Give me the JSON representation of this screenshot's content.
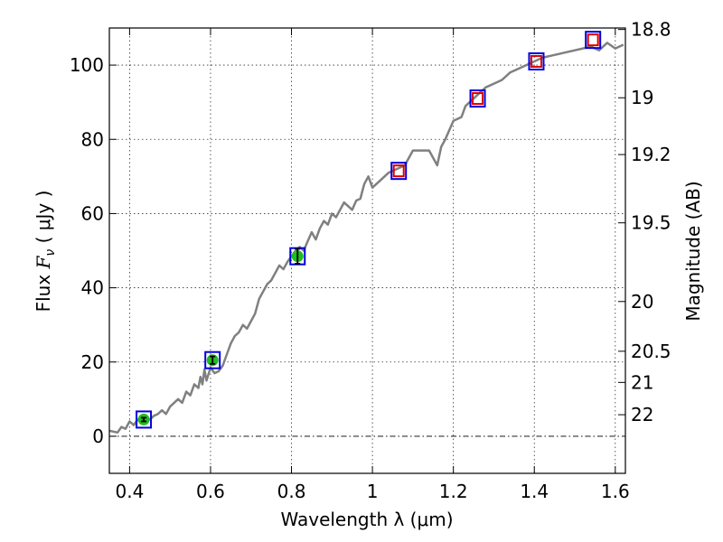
{
  "chart_data": {
    "type": "line",
    "xlabel": "Wavelength  λ (μm)",
    "ylabel_left": {
      "prefix": "Flux  ",
      "symbol": "F",
      "subscript": "ν",
      "suffix": "  ( μJy )"
    },
    "ylabel_right": "Magnitude (AB)",
    "xlim": [
      0.35,
      1.625
    ],
    "ylim": [
      -10,
      110
    ],
    "xticks": [
      0.4,
      0.6,
      0.8,
      1.0,
      1.2,
      1.4,
      1.6
    ],
    "xtick_labels": [
      "0.4",
      "0.6",
      "0.8",
      "1",
      "1.2",
      "1.4",
      "1.6"
    ],
    "yticks": [
      0,
      20,
      40,
      60,
      80,
      100
    ],
    "ytick_labels": [
      "0",
      "20",
      "40",
      "60",
      "80",
      "100"
    ],
    "right_ticks": [
      {
        "label": "18.8",
        "flux": 109.6
      },
      {
        "label": "19",
        "flux": 91.2
      },
      {
        "label": "19.2",
        "flux": 75.9
      },
      {
        "label": "19.5",
        "flux": 57.5
      },
      {
        "label": "20",
        "flux": 36.3
      },
      {
        "label": "20.5",
        "flux": 22.9
      },
      {
        "label": "21",
        "flux": 14.5
      },
      {
        "label": "22",
        "flux": 5.8
      }
    ],
    "grid": true,
    "zero_line": true,
    "spectrum": {
      "color": "#808080",
      "x": [
        0.35,
        0.37,
        0.38,
        0.39,
        0.4,
        0.41,
        0.42,
        0.43,
        0.44,
        0.45,
        0.46,
        0.47,
        0.48,
        0.49,
        0.5,
        0.51,
        0.52,
        0.53,
        0.54,
        0.55,
        0.56,
        0.57,
        0.575,
        0.58,
        0.585,
        0.59,
        0.6,
        0.61,
        0.62,
        0.63,
        0.64,
        0.65,
        0.66,
        0.67,
        0.68,
        0.69,
        0.7,
        0.71,
        0.72,
        0.73,
        0.74,
        0.75,
        0.76,
        0.77,
        0.78,
        0.79,
        0.8,
        0.81,
        0.82,
        0.83,
        0.84,
        0.85,
        0.86,
        0.87,
        0.88,
        0.89,
        0.9,
        0.91,
        0.92,
        0.93,
        0.94,
        0.95,
        0.96,
        0.97,
        0.98,
        0.99,
        1.0,
        1.01,
        1.02,
        1.04,
        1.06,
        1.08,
        1.1,
        1.12,
        1.14,
        1.16,
        1.17,
        1.18,
        1.2,
        1.22,
        1.23,
        1.24,
        1.26,
        1.28,
        1.3,
        1.32,
        1.34,
        1.36,
        1.38,
        1.4,
        1.42,
        1.44,
        1.46,
        1.48,
        1.5,
        1.52,
        1.54,
        1.56,
        1.58,
        1.6,
        1.62
      ],
      "values": [
        1.5,
        1.0,
        2.5,
        2.0,
        4.0,
        3.0,
        4.5,
        3.5,
        5.0,
        4.5,
        5.5,
        6.0,
        7.0,
        6.0,
        8.0,
        9.0,
        10.0,
        9.0,
        12.0,
        11.0,
        14.0,
        13.0,
        16.0,
        14.0,
        18.0,
        15.0,
        18.5,
        17.0,
        17.5,
        19.0,
        22.0,
        25.0,
        27.0,
        28.0,
        30.0,
        29.0,
        31.0,
        33.0,
        37.0,
        39.0,
        41.0,
        42.0,
        44.0,
        46.0,
        45.0,
        47.0,
        48.5,
        50.0,
        51.0,
        50.0,
        52.5,
        55.0,
        53.0,
        56.0,
        58.0,
        57.0,
        60.0,
        59.0,
        61.0,
        63.0,
        62.0,
        61.0,
        63.5,
        64.0,
        68.0,
        70.0,
        67.0,
        68.0,
        69.0,
        71.0,
        72.0,
        73.0,
        77.0,
        77.0,
        77.0,
        73.0,
        78.0,
        80.0,
        85.0,
        86.0,
        89.0,
        90.0,
        92.0,
        94.0,
        95.0,
        96.0,
        98.0,
        99.0,
        100.0,
        101.0,
        102.0,
        102.5,
        103.0,
        103.5,
        104.0,
        104.5,
        105.0,
        104.0,
        106.0,
        104.5,
        105.5
      ]
    },
    "photometry": [
      {
        "x": 0.435,
        "flux": 4.5,
        "err": 0.5,
        "kind": "measured"
      },
      {
        "x": 0.605,
        "flux": 20.5,
        "err": 1.0,
        "kind": "measured"
      },
      {
        "x": 0.815,
        "flux": 48.5,
        "err": 2.0,
        "kind": "measured"
      },
      {
        "x": 1.065,
        "flux": 71.5,
        "err": 0,
        "kind": "upper"
      },
      {
        "x": 1.26,
        "flux": 91.0,
        "err": 0,
        "kind": "upper"
      },
      {
        "x": 1.405,
        "flux": 101.0,
        "err": 0,
        "kind": "upper"
      },
      {
        "x": 1.545,
        "flux": 106.8,
        "err": 0,
        "kind": "upper"
      }
    ],
    "colors": {
      "marker_fill": "#22bb22",
      "box_outer": "#0000dd",
      "box_inner": "#dd0000"
    }
  }
}
